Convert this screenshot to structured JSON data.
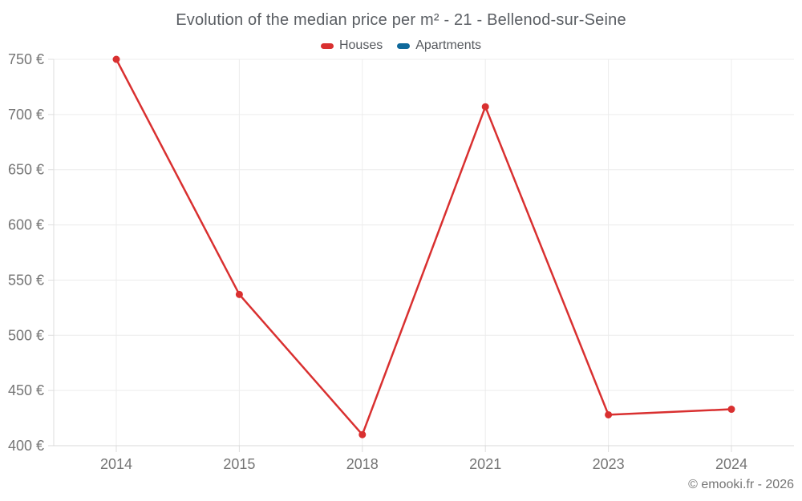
{
  "title": "Evolution of the median price per m² - 21 - Bellenod-sur-Seine",
  "copyright": "© emooki.fr - 2026",
  "colors": {
    "houses": "#d93030",
    "apartments": "#0f699b",
    "grid": "#ececec",
    "axis": "#d8d8d8",
    "tick": "#dedede",
    "axis_label": "#757575",
    "title_text": "#5a5e63",
    "legend_text": "#56595e",
    "background": "#ffffff"
  },
  "legend": {
    "items": [
      {
        "label": "Houses",
        "color": "#d93030",
        "series": "houses"
      },
      {
        "label": "Apartments",
        "color": "#0f699b",
        "series": "apartments"
      }
    ]
  },
  "chart_data": {
    "type": "line",
    "title": "Evolution of the median price per m² - 21 - Bellenod-sur-Seine",
    "categories": [
      "2014",
      "2015",
      "2018",
      "2021",
      "2023",
      "2024"
    ],
    "series": [
      {
        "name": "Houses",
        "color": "#d93030",
        "values": [
          750,
          537,
          410,
          707,
          428,
          433
        ]
      },
      {
        "name": "Apartments",
        "color": "#0f699b",
        "values": []
      }
    ],
    "xlabel": "",
    "ylabel": "",
    "ylim": [
      400,
      750
    ],
    "ytick_step": 50,
    "ytick_suffix": " €",
    "yticks": [
      400,
      450,
      500,
      550,
      600,
      650,
      700,
      750
    ],
    "grid": true,
    "legend_position": "top",
    "marker_radius": 4.5,
    "line_width": 2.5
  }
}
